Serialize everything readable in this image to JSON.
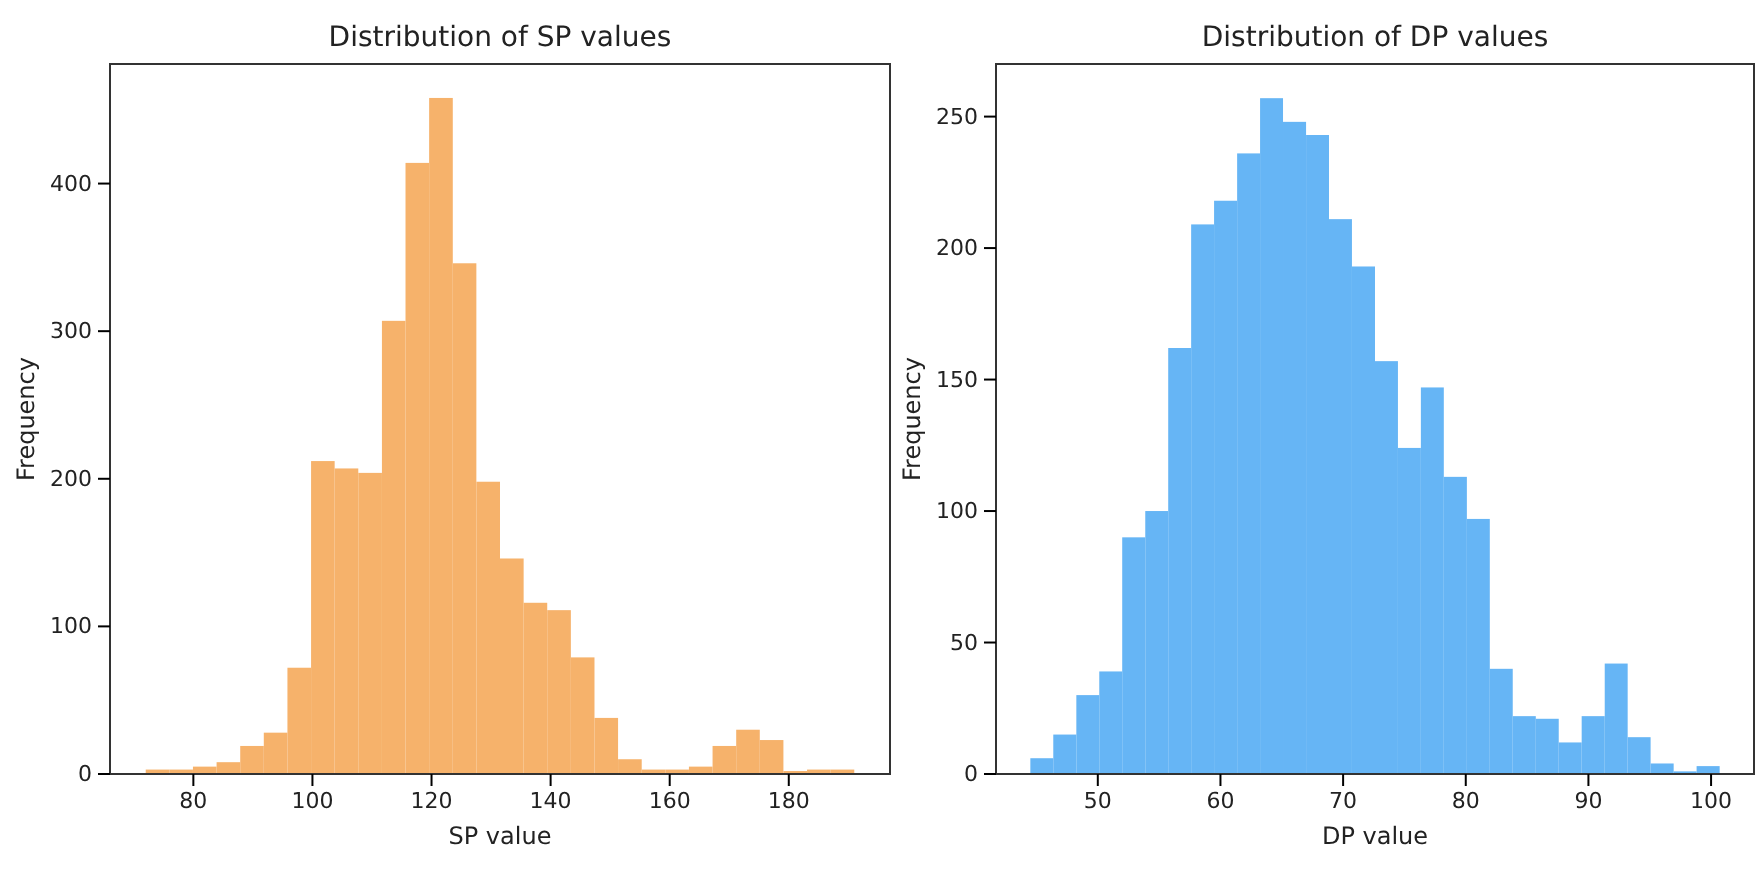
{
  "chart_data": [
    {
      "type": "histogram",
      "title": "Distribution of SP values",
      "xlabel": "SP value",
      "ylabel": "Frequency",
      "color": "#f6b26b",
      "bins": [
        72,
        75.97,
        79.93,
        83.9,
        87.87,
        91.83,
        95.8,
        99.77,
        103.73,
        107.7,
        111.67,
        115.63,
        119.6,
        123.57,
        127.53,
        131.5,
        135.47,
        139.43,
        143.4,
        147.37,
        151.33,
        155.3,
        159.27,
        163.23,
        167.2,
        171.17,
        175.13,
        179.1,
        183.07,
        187.03,
        191
      ],
      "values": [
        3,
        3,
        5,
        8,
        19,
        28,
        72,
        212,
        207,
        204,
        307,
        414,
        458,
        346,
        198,
        146,
        116,
        111,
        79,
        38,
        10,
        3,
        3,
        5,
        19,
        30,
        23,
        2,
        3,
        3
      ],
      "xlim": [
        66,
        197
      ],
      "xticks": [
        80,
        100,
        120,
        140,
        160,
        180
      ],
      "ylim": [
        0,
        481
      ],
      "yticks": [
        0,
        100,
        200,
        300,
        400
      ]
    },
    {
      "type": "histogram",
      "title": "Distribution of DP values",
      "xlabel": "DP value",
      "ylabel": "Frequency",
      "color": "#66b5f5",
      "bins": [
        44.5,
        46.37,
        48.25,
        50.12,
        51.99,
        53.87,
        55.74,
        57.61,
        59.48,
        61.36,
        63.23,
        65.1,
        66.98,
        68.85,
        70.72,
        72.6,
        74.47,
        76.34,
        78.21,
        80.09,
        81.96,
        83.83,
        85.71,
        87.58,
        89.45,
        91.33,
        93.2,
        95.07,
        96.95,
        98.82,
        100.7
      ],
      "values": [
        6,
        15,
        30,
        39,
        90,
        100,
        162,
        209,
        218,
        236,
        257,
        248,
        243,
        211,
        193,
        157,
        124,
        147,
        113,
        97,
        40,
        22,
        21,
        12,
        22,
        42,
        14,
        4,
        1,
        3
      ],
      "xlim": [
        41.7,
        103.5
      ],
      "xticks": [
        50,
        60,
        70,
        80,
        90,
        100
      ],
      "ylim": [
        0,
        270
      ],
      "yticks": [
        0,
        50,
        100,
        150,
        200,
        250
      ]
    }
  ]
}
